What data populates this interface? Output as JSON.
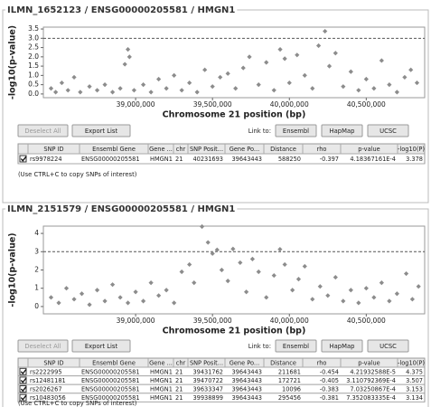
{
  "panels": [
    {
      "title": "ILMN_1652123 / ENSG00000205581 / HMGN1",
      "chart": {
        "type": "scatter",
        "xlabel": "Chromosome 21 position (bp)",
        "ylabel": "-log10(p-value)",
        "color": "#8c8c8c",
        "threshold": 3,
        "xlim": [
          38400000,
          40880000
        ],
        "xticks": [
          {
            "value": 39000000,
            "label": "39,000,000"
          },
          {
            "value": 39500000,
            "label": "39,500,000"
          },
          {
            "value": 40000000,
            "label": "40,000,000"
          },
          {
            "value": 40500000,
            "label": "40,500,000"
          }
        ],
        "ylim": [
          -0.2,
          3.6
        ],
        "yticks": [
          {
            "value": 0,
            "label": "0.0"
          },
          {
            "value": 0.5,
            "label": "0.5"
          },
          {
            "value": 1,
            "label": "1.0"
          },
          {
            "value": 1.5,
            "label": "1.5"
          },
          {
            "value": 2,
            "label": "2.0"
          },
          {
            "value": 2.5,
            "label": "2.5"
          },
          {
            "value": 3,
            "label": "3.0"
          },
          {
            "value": 3.5,
            "label": "3.5"
          }
        ],
        "x": [
          38450000,
          38480000,
          38520000,
          38560000,
          38600000,
          38640000,
          38700000,
          38750000,
          38800000,
          38850000,
          38900000,
          38930000,
          38950000,
          38960000,
          38990000,
          39050000,
          39100000,
          39150000,
          39200000,
          39250000,
          39300000,
          39350000,
          39400000,
          39450000,
          39500000,
          39550000,
          39600000,
          39650000,
          39700000,
          39740000,
          39800000,
          39850000,
          39900000,
          39940000,
          39970000,
          40000000,
          40050000,
          40100000,
          40150000,
          40190000,
          40231693,
          40260000,
          40300000,
          40350000,
          40400000,
          40450000,
          40500000,
          40550000,
          40600000,
          40650000,
          40700000,
          40750000,
          40790000,
          40830000
        ],
        "y": [
          0.3,
          0.1,
          0.6,
          0.2,
          0.9,
          0.1,
          0.4,
          0.2,
          0.5,
          0.1,
          0.3,
          1.6,
          2.4,
          2.0,
          0.2,
          0.5,
          0.1,
          0.8,
          0.3,
          1.0,
          0.2,
          0.6,
          0.1,
          1.3,
          0.4,
          0.9,
          1.1,
          0.3,
          1.4,
          2.0,
          0.5,
          1.7,
          0.2,
          2.4,
          1.9,
          0.6,
          2.1,
          1.0,
          0.3,
          2.6,
          3.378,
          1.5,
          2.2,
          0.4,
          1.2,
          0.2,
          0.8,
          0.3,
          1.8,
          0.5,
          0.1,
          0.9,
          1.3,
          0.6
        ]
      },
      "buttons": {
        "deselect": "Deselect All",
        "export": "Export List",
        "link_to": "Link to:",
        "ensembl": "Ensembl",
        "hapmap": "HapMap",
        "ucsc": "UCSC"
      },
      "table": {
        "columns": [
          "SNP ID",
          "Ensembl Gene",
          "Gene ...",
          "chr",
          "SNP Posit...",
          "Gene Po...",
          "Distance",
          "rho",
          "p-value",
          "-log10(P)"
        ],
        "rows": [
          {
            "checked": true,
            "cells": [
              "rs9978224",
              "ENSG00000205581",
              "HMGN1",
              "21",
              "40231693",
              "39643443",
              "588250",
              "-0.397",
              "4.18367161E-4",
              "3.378"
            ]
          }
        ]
      },
      "note": "(Use CTRL+C to copy SNPs of interest)"
    },
    {
      "title": "ILMN_2151579 / ENSG00000205581 / HMGN1",
      "chart": {
        "type": "scatter",
        "xlabel": "Chromosome 21 position (bp)",
        "ylabel": "-log10(p-value)",
        "color": "#8c8c8c",
        "threshold": 3,
        "xlim": [
          38400000,
          40880000
        ],
        "xticks": [
          {
            "value": 39000000,
            "label": "39,000,000"
          },
          {
            "value": 39500000,
            "label": "39,500,000"
          },
          {
            "value": 40000000,
            "label": "40,000,000"
          },
          {
            "value": 40500000,
            "label": "40,500,000"
          }
        ],
        "ylim": [
          -0.4,
          4.4
        ],
        "yticks": [
          0,
          1,
          2,
          3,
          4
        ],
        "x": [
          38450000,
          38500000,
          38550000,
          38600000,
          38650000,
          38700000,
          38750000,
          38800000,
          38850000,
          38900000,
          38950000,
          39000000,
          39050000,
          39100000,
          39150000,
          39200000,
          39250000,
          39300000,
          39350000,
          39380000,
          39431762,
          39470722,
          39500000,
          39530000,
          39560000,
          39600000,
          39633347,
          39680000,
          39720000,
          39760000,
          39800000,
          39850000,
          39900000,
          39938899,
          39970000,
          40020000,
          40060000,
          40100000,
          40150000,
          40200000,
          40250000,
          40300000,
          40350000,
          40400000,
          40450000,
          40500000,
          40550000,
          40600000,
          40650000,
          40700000,
          40760000,
          40800000,
          40840000
        ],
        "y": [
          0.5,
          0.2,
          1.0,
          0.4,
          0.7,
          0.1,
          0.9,
          0.3,
          1.2,
          0.5,
          0.2,
          0.8,
          0.3,
          1.3,
          0.6,
          0.9,
          0.2,
          1.9,
          2.3,
          1.3,
          4.375,
          3.507,
          2.9,
          3.1,
          2.0,
          1.4,
          3.153,
          2.4,
          0.8,
          2.6,
          1.9,
          0.5,
          1.7,
          3.134,
          2.3,
          0.9,
          1.5,
          2.2,
          0.4,
          1.1,
          0.6,
          1.6,
          0.3,
          0.9,
          0.2,
          1.0,
          0.5,
          1.3,
          0.3,
          0.7,
          1.8,
          0.4,
          1.1
        ]
      },
      "buttons": {
        "deselect": "Deselect All",
        "export": "Export List",
        "link_to": "Link to:",
        "ensembl": "Ensembl",
        "hapmap": "HapMap",
        "ucsc": "UCSC"
      },
      "table": {
        "columns": [
          "SNP ID",
          "Ensembl Gene",
          "Gene ...",
          "chr",
          "SNP Posit...",
          "Gene Po...",
          "Distance",
          "rho",
          "p-value",
          "-log10(P)"
        ],
        "rows": [
          {
            "checked": true,
            "cells": [
              "rs2222995",
              "ENSG00000205581",
              "HMGN1",
              "21",
              "39431762",
              "39643443",
              "211681",
              "-0.454",
              "4.21932588E-5",
              "4.375"
            ]
          },
          {
            "checked": true,
            "cells": [
              "rs12481181",
              "ENSG00000205581",
              "HMGN1",
              "21",
              "39470722",
              "39643443",
              "172721",
              "-0.405",
              "3.110792369E-4",
              "3.507"
            ]
          },
          {
            "checked": true,
            "cells": [
              "rs2026267",
              "ENSG00000205581",
              "HMGN1",
              "21",
              "39633347",
              "39643443",
              "10096",
              "-0.383",
              "7.03250867E-4",
              "3.153"
            ]
          },
          {
            "checked": true,
            "cells": [
              "rs10483056",
              "ENSG00000205581",
              "HMGN1",
              "21",
              "39938899",
              "39643443",
              "295456",
              "-0.381",
              "7.352083335E-4",
              "3.134"
            ]
          }
        ]
      },
      "note": "(Use CTRL+C to copy SNPs of interest)"
    }
  ]
}
